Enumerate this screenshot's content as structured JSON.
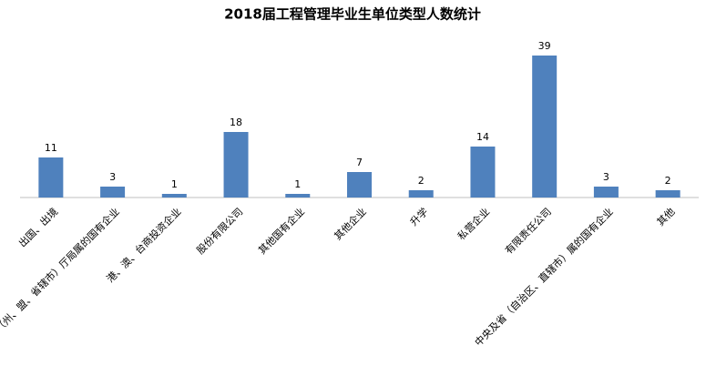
{
  "chart_data": {
    "type": "bar",
    "title": "2018届工程管理毕业生单位类型人数统计",
    "categories": [
      "出国、出境",
      "地市（州、盟、省辖市）厅局属的国有企业",
      "港、澳、台商投资企业",
      "股份有限公司",
      "其他国有企业",
      "其他企业",
      "升学",
      "私营企业",
      "有限责任公司",
      "中央及省（自治区、直辖市）属的国有企业",
      "其他"
    ],
    "values": [
      11,
      3,
      1,
      18,
      1,
      7,
      2,
      14,
      39,
      3,
      2
    ],
    "color": "#4f81bd",
    "ylim": [
      0,
      40
    ]
  }
}
